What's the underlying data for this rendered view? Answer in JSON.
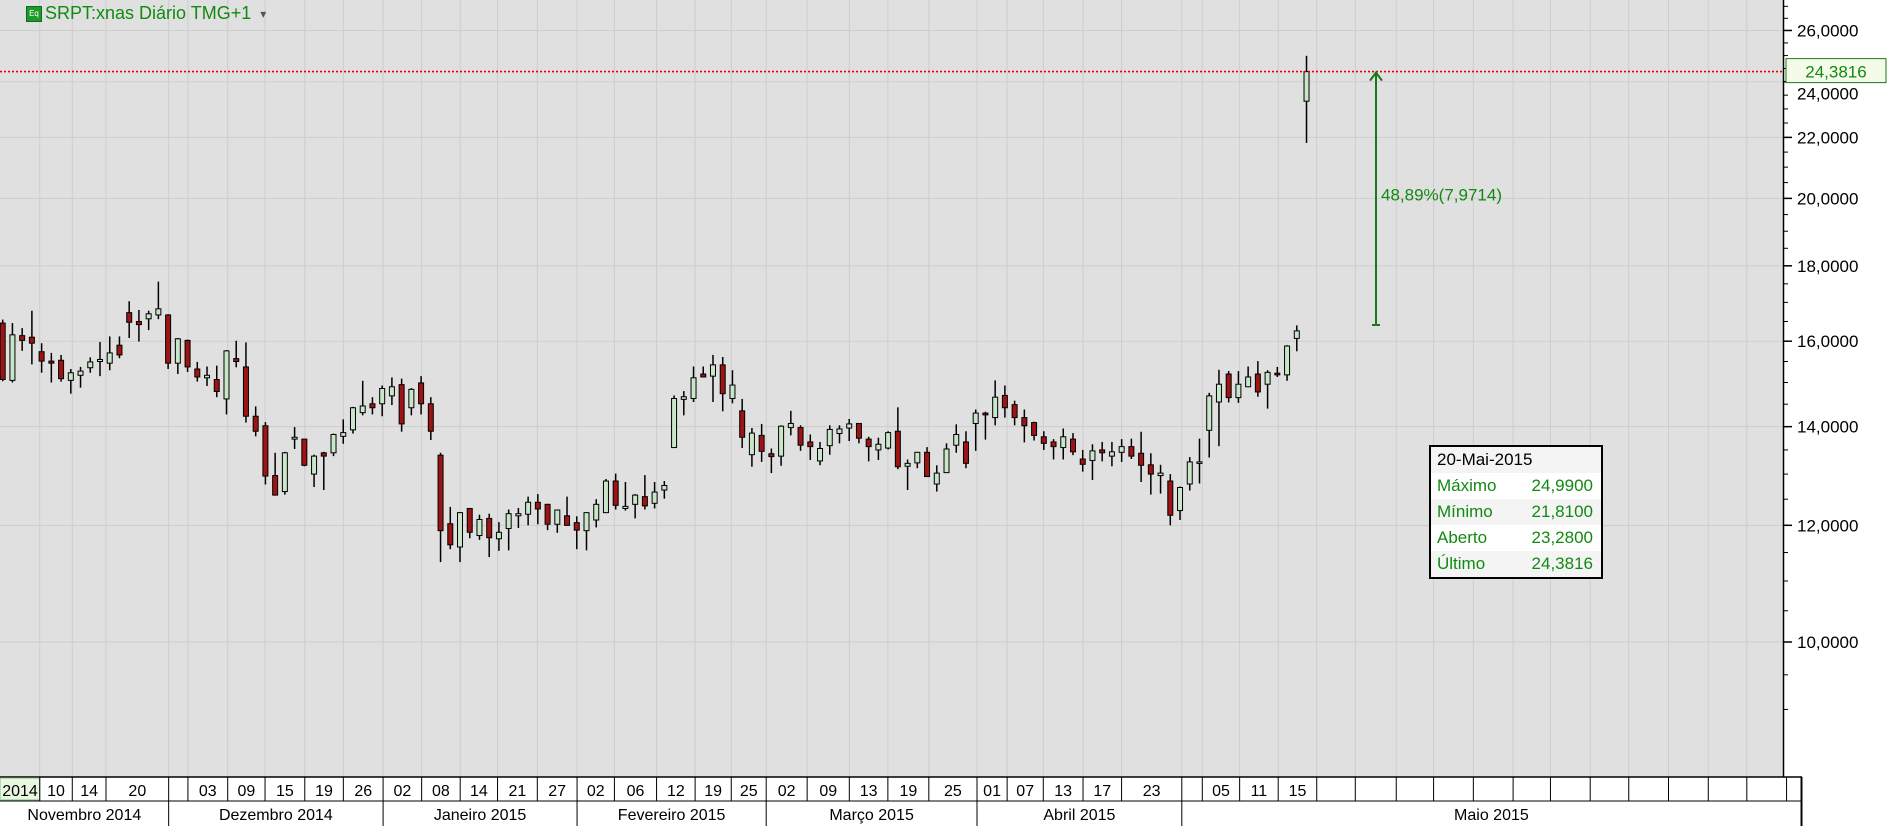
{
  "header": {
    "symbol_title": "SRPT:xnas Diário TMG+1",
    "icon": "eq-icon",
    "dropdown_icon": "caret-down-icon"
  },
  "colors": {
    "up": "#c8e6c8",
    "down": "#9e1414",
    "background": "#e0e0e0",
    "grid": "#cdcdcd",
    "accent": "#118a11",
    "last_price_line": "#e00000"
  },
  "last_price_tag": "24,3816",
  "measure_label": "48,89%(7,9714)",
  "info_box": {
    "date": "20-Mai-2015",
    "rows": [
      {
        "label": "Máximo",
        "value": "24,9900"
      },
      {
        "label": "Mínimo",
        "value": "21,8100"
      },
      {
        "label": "Aberto",
        "value": "23,2800"
      },
      {
        "label": "Último",
        "value": "24,3816"
      }
    ]
  },
  "chart_data": {
    "type": "candlestick",
    "yscale": "log",
    "ylim": [
      8.5,
      27
    ],
    "grid": true,
    "y_ticks": [
      10,
      12,
      14,
      16,
      18,
      20,
      22,
      24,
      26
    ],
    "y_tick_labels": [
      "10,0000",
      "12,0000",
      "14,0000",
      "16,0000",
      "18,0000",
      "20,0000",
      "22,0000",
      "24,0000",
      "26,0000"
    ],
    "x_tick_labels": [
      "2014",
      "10",
      "14",
      "20",
      "03",
      "09",
      "15",
      "19",
      "26",
      "02",
      "08",
      "14",
      "21",
      "27",
      "02",
      "06",
      "12",
      "19",
      "25",
      "02",
      "09",
      "13",
      "19",
      "25",
      "01",
      "07",
      "13",
      "17",
      "23",
      "05",
      "11",
      "15"
    ],
    "month_labels": [
      "Novembro 2014",
      "Dezembro 2014",
      "Janeiro 2015",
      "Fevereiro 2015",
      "Março 2015",
      "Abril 2015",
      "Maio 2015"
    ],
    "last_price": 24.3816,
    "measure": {
      "from": 16.4102,
      "to": 24.3816,
      "percent": 48.89,
      "change": 7.9714
    },
    "ohlc_fields": [
      "open",
      "high",
      "low",
      "close"
    ],
    "ohlc": [
      [
        16.46,
        16.55,
        15.03,
        15.07
      ],
      [
        15.05,
        16.46,
        15.0,
        16.16
      ],
      [
        16.14,
        16.33,
        15.76,
        16.02
      ],
      [
        16.1,
        16.78,
        15.43,
        15.95
      ],
      [
        15.74,
        15.95,
        15.23,
        15.51
      ],
      [
        15.51,
        15.71,
        15.0,
        15.46
      ],
      [
        15.53,
        15.66,
        15.02,
        15.09
      ],
      [
        15.05,
        15.32,
        14.74,
        15.23
      ],
      [
        15.17,
        15.37,
        14.88,
        15.27
      ],
      [
        15.35,
        15.6,
        15.23,
        15.49
      ],
      [
        15.5,
        15.98,
        15.15,
        15.55
      ],
      [
        15.46,
        16.12,
        15.29,
        15.71
      ],
      [
        15.9,
        16.12,
        15.58,
        15.66
      ],
      [
        16.73,
        17.03,
        16.08,
        16.48
      ],
      [
        16.5,
        16.8,
        15.99,
        16.42
      ],
      [
        16.57,
        16.78,
        16.28,
        16.7
      ],
      [
        16.67,
        17.56,
        16.56,
        16.83
      ],
      [
        16.67,
        16.69,
        15.32,
        15.46
      ],
      [
        15.46,
        16.08,
        15.2,
        16.06
      ],
      [
        16.02,
        16.04,
        15.25,
        15.37
      ],
      [
        15.32,
        15.49,
        15.02,
        15.13
      ],
      [
        15.11,
        15.38,
        14.92,
        15.17
      ],
      [
        15.07,
        15.4,
        14.66,
        14.79
      ],
      [
        14.62,
        15.78,
        14.27,
        15.76
      ],
      [
        15.57,
        16.01,
        15.36,
        15.5
      ],
      [
        15.37,
        15.97,
        14.09,
        14.23
      ],
      [
        14.23,
        14.45,
        13.79,
        13.9
      ],
      [
        14.02,
        14.1,
        12.79,
        12.96
      ],
      [
        12.97,
        13.44,
        12.57,
        12.58
      ],
      [
        12.65,
        13.46,
        12.59,
        13.44
      ],
      [
        13.73,
        13.99,
        13.52,
        13.77
      ],
      [
        13.73,
        13.73,
        13.16,
        13.18
      ],
      [
        13.0,
        13.4,
        12.74,
        13.37
      ],
      [
        13.44,
        13.46,
        12.68,
        13.37
      ],
      [
        13.44,
        13.85,
        13.37,
        13.83
      ],
      [
        13.79,
        14.16,
        13.63,
        13.87
      ],
      [
        13.93,
        14.44,
        13.85,
        14.42
      ],
      [
        14.31,
        15.04,
        14.25,
        14.46
      ],
      [
        14.51,
        14.66,
        14.27,
        14.42
      ],
      [
        14.51,
        14.93,
        14.23,
        14.86
      ],
      [
        14.69,
        15.12,
        14.48,
        14.9
      ],
      [
        14.95,
        15.09,
        13.89,
        14.06
      ],
      [
        14.42,
        14.87,
        14.25,
        14.84
      ],
      [
        14.99,
        15.15,
        14.27,
        14.51
      ],
      [
        14.51,
        14.66,
        13.71,
        13.9
      ],
      [
        13.39,
        13.44,
        11.33,
        11.9
      ],
      [
        12.03,
        12.35,
        11.56,
        11.64
      ],
      [
        11.6,
        12.25,
        11.33,
        12.24
      ],
      [
        12.32,
        12.33,
        11.76,
        11.87
      ],
      [
        11.81,
        12.2,
        11.73,
        12.11
      ],
      [
        12.13,
        12.22,
        11.42,
        11.77
      ],
      [
        11.75,
        12.06,
        11.53,
        11.87
      ],
      [
        11.94,
        12.3,
        11.54,
        12.22
      ],
      [
        12.18,
        12.33,
        11.95,
        12.22
      ],
      [
        12.21,
        12.55,
        12.0,
        12.44
      ],
      [
        12.44,
        12.6,
        12.02,
        12.31
      ],
      [
        12.4,
        12.41,
        11.91,
        12.02
      ],
      [
        12.02,
        12.3,
        11.86,
        12.29
      ],
      [
        12.18,
        12.55,
        11.99,
        12.0
      ],
      [
        12.05,
        12.17,
        11.56,
        11.91
      ],
      [
        11.9,
        12.25,
        11.54,
        12.24
      ],
      [
        12.1,
        12.5,
        11.96,
        12.4
      ],
      [
        12.24,
        12.9,
        12.24,
        12.86
      ],
      [
        12.86,
        13.01,
        12.3,
        12.38
      ],
      [
        12.32,
        12.84,
        12.28,
        12.36
      ],
      [
        12.4,
        12.6,
        12.13,
        12.58
      ],
      [
        12.55,
        12.98,
        12.3,
        12.37
      ],
      [
        12.42,
        12.84,
        12.32,
        12.64
      ],
      [
        12.68,
        12.86,
        12.51,
        12.77
      ],
      [
        13.55,
        14.7,
        13.55,
        14.63
      ],
      [
        14.61,
        14.8,
        14.25,
        14.67
      ],
      [
        14.63,
        15.38,
        14.55,
        15.11
      ],
      [
        15.2,
        15.38,
        15.12,
        15.13
      ],
      [
        15.15,
        15.66,
        14.55,
        15.42
      ],
      [
        15.42,
        15.61,
        14.34,
        14.74
      ],
      [
        14.63,
        15.29,
        14.52,
        14.94
      ],
      [
        14.35,
        14.62,
        13.54,
        13.77
      ],
      [
        13.4,
        13.97,
        13.15,
        13.86
      ],
      [
        13.81,
        14.06,
        13.25,
        13.47
      ],
      [
        13.42,
        13.53,
        13.02,
        13.36
      ],
      [
        13.37,
        14.03,
        13.17,
        14.01
      ],
      [
        13.98,
        14.35,
        13.81,
        14.07
      ],
      [
        13.98,
        14.03,
        13.48,
        13.6
      ],
      [
        13.67,
        13.83,
        13.29,
        13.57
      ],
      [
        13.27,
        13.67,
        13.18,
        13.53
      ],
      [
        13.59,
        14.03,
        13.4,
        13.94
      ],
      [
        13.85,
        14.03,
        13.64,
        13.95
      ],
      [
        13.97,
        14.17,
        13.69,
        14.06
      ],
      [
        14.07,
        14.07,
        13.64,
        13.75
      ],
      [
        13.73,
        13.78,
        13.26,
        13.57
      ],
      [
        13.5,
        13.76,
        13.29,
        13.62
      ],
      [
        13.54,
        13.9,
        13.51,
        13.87
      ],
      [
        13.9,
        14.43,
        13.1,
        13.15
      ],
      [
        13.16,
        13.3,
        12.68,
        13.22
      ],
      [
        13.23,
        13.45,
        13.12,
        13.45
      ],
      [
        13.45,
        13.56,
        12.95,
        12.95
      ],
      [
        12.8,
        13.18,
        12.65,
        13.02
      ],
      [
        13.03,
        13.64,
        13.03,
        13.52
      ],
      [
        13.6,
        14.05,
        13.44,
        13.83
      ],
      [
        13.67,
        13.9,
        13.12,
        13.22
      ],
      [
        14.07,
        14.38,
        13.48,
        14.3
      ],
      [
        14.3,
        14.33,
        13.72,
        14.26
      ],
      [
        14.2,
        15.05,
        14.03,
        14.66
      ],
      [
        14.7,
        14.93,
        14.2,
        14.42
      ],
      [
        14.49,
        14.58,
        14.03,
        14.2
      ],
      [
        14.2,
        14.38,
        13.66,
        14.02
      ],
      [
        14.09,
        14.11,
        13.7,
        13.81
      ],
      [
        13.78,
        13.9,
        13.5,
        13.64
      ],
      [
        13.67,
        13.73,
        13.3,
        13.57
      ],
      [
        13.55,
        13.96,
        13.3,
        13.78
      ],
      [
        13.73,
        13.86,
        13.39,
        13.46
      ],
      [
        13.31,
        13.5,
        13.05,
        13.2
      ],
      [
        13.28,
        13.62,
        12.88,
        13.48
      ],
      [
        13.5,
        13.67,
        13.26,
        13.44
      ],
      [
        13.37,
        13.67,
        13.16,
        13.46
      ],
      [
        13.45,
        13.73,
        13.25,
        13.57
      ],
      [
        13.57,
        13.74,
        13.31,
        13.37
      ],
      [
        13.43,
        13.89,
        12.84,
        13.18
      ],
      [
        13.19,
        13.43,
        12.59,
        13.0
      ],
      [
        12.97,
        13.19,
        12.61,
        13.02
      ],
      [
        12.86,
        13.0,
        12.0,
        12.19
      ],
      [
        12.28,
        12.75,
        12.1,
        12.73
      ],
      [
        12.8,
        13.35,
        12.67,
        13.25
      ],
      [
        13.22,
        13.74,
        12.81,
        13.25
      ],
      [
        13.92,
        14.76,
        13.34,
        14.69
      ],
      [
        14.55,
        15.3,
        13.58,
        14.96
      ],
      [
        15.2,
        15.27,
        14.54,
        14.65
      ],
      [
        14.65,
        15.27,
        14.53,
        14.96
      ],
      [
        14.9,
        15.38,
        14.89,
        15.13
      ],
      [
        15.2,
        15.51,
        14.67,
        14.78
      ],
      [
        14.96,
        15.29,
        14.4,
        15.24
      ],
      [
        15.22,
        15.37,
        15.13,
        15.18
      ],
      [
        15.18,
        15.9,
        15.04,
        15.88
      ],
      [
        16.07,
        16.4,
        15.75,
        16.26
      ],
      [
        23.28,
        24.99,
        21.81,
        24.3816
      ]
    ]
  }
}
